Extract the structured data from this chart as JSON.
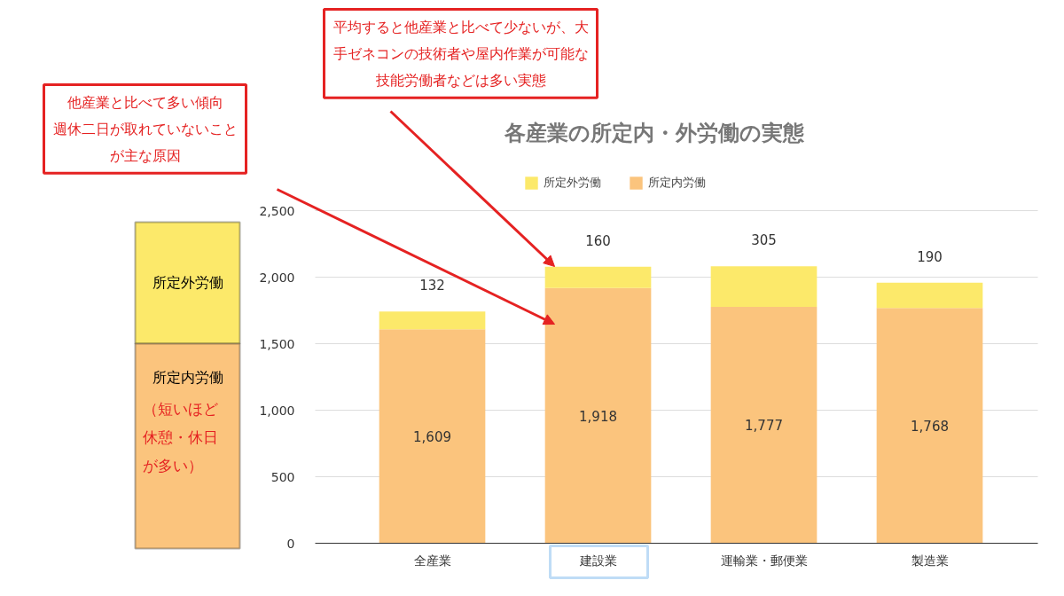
{
  "chart_data": {
    "type": "bar",
    "title": "各産業の所定内・外労働の実態",
    "stacked": true,
    "categories": [
      "全産業",
      "建設業",
      "運輸業・郵便業",
      "製造業"
    ],
    "series": [
      {
        "name": "所定内労働",
        "color": "#fbc47d",
        "values": [
          1609,
          1918,
          1777,
          1768
        ],
        "value_labels": [
          "1,609",
          "1,918",
          "1,777",
          "1,768"
        ]
      },
      {
        "name": "所定外労働",
        "color": "#fce96a",
        "values": [
          132,
          160,
          305,
          190
        ],
        "value_labels": [
          "132",
          "160",
          "305",
          "190"
        ]
      }
    ],
    "ylim": [
      0,
      2500
    ],
    "yticks": [
      0,
      500,
      {
        "value": 1000,
        "label": "1,000"
      },
      {
        "value": 1500,
        "label": "1,500"
      },
      {
        "value": 2000,
        "label": "2,000"
      },
      {
        "value": 2500,
        "label": "2,500"
      }
    ],
    "grid": "y",
    "legend": "top",
    "annotations": [
      "平均すると他産業と比べて少ないが、大手ゼネコンの技術者や屋内作業が可能な技能労働者などは多い実態",
      "他産業と比べて多い傾向週休二日が取れていないことが主な原因",
      "所定外労働",
      "所定内労働",
      "（短いほど休憩・休日が多い）"
    ]
  }
}
